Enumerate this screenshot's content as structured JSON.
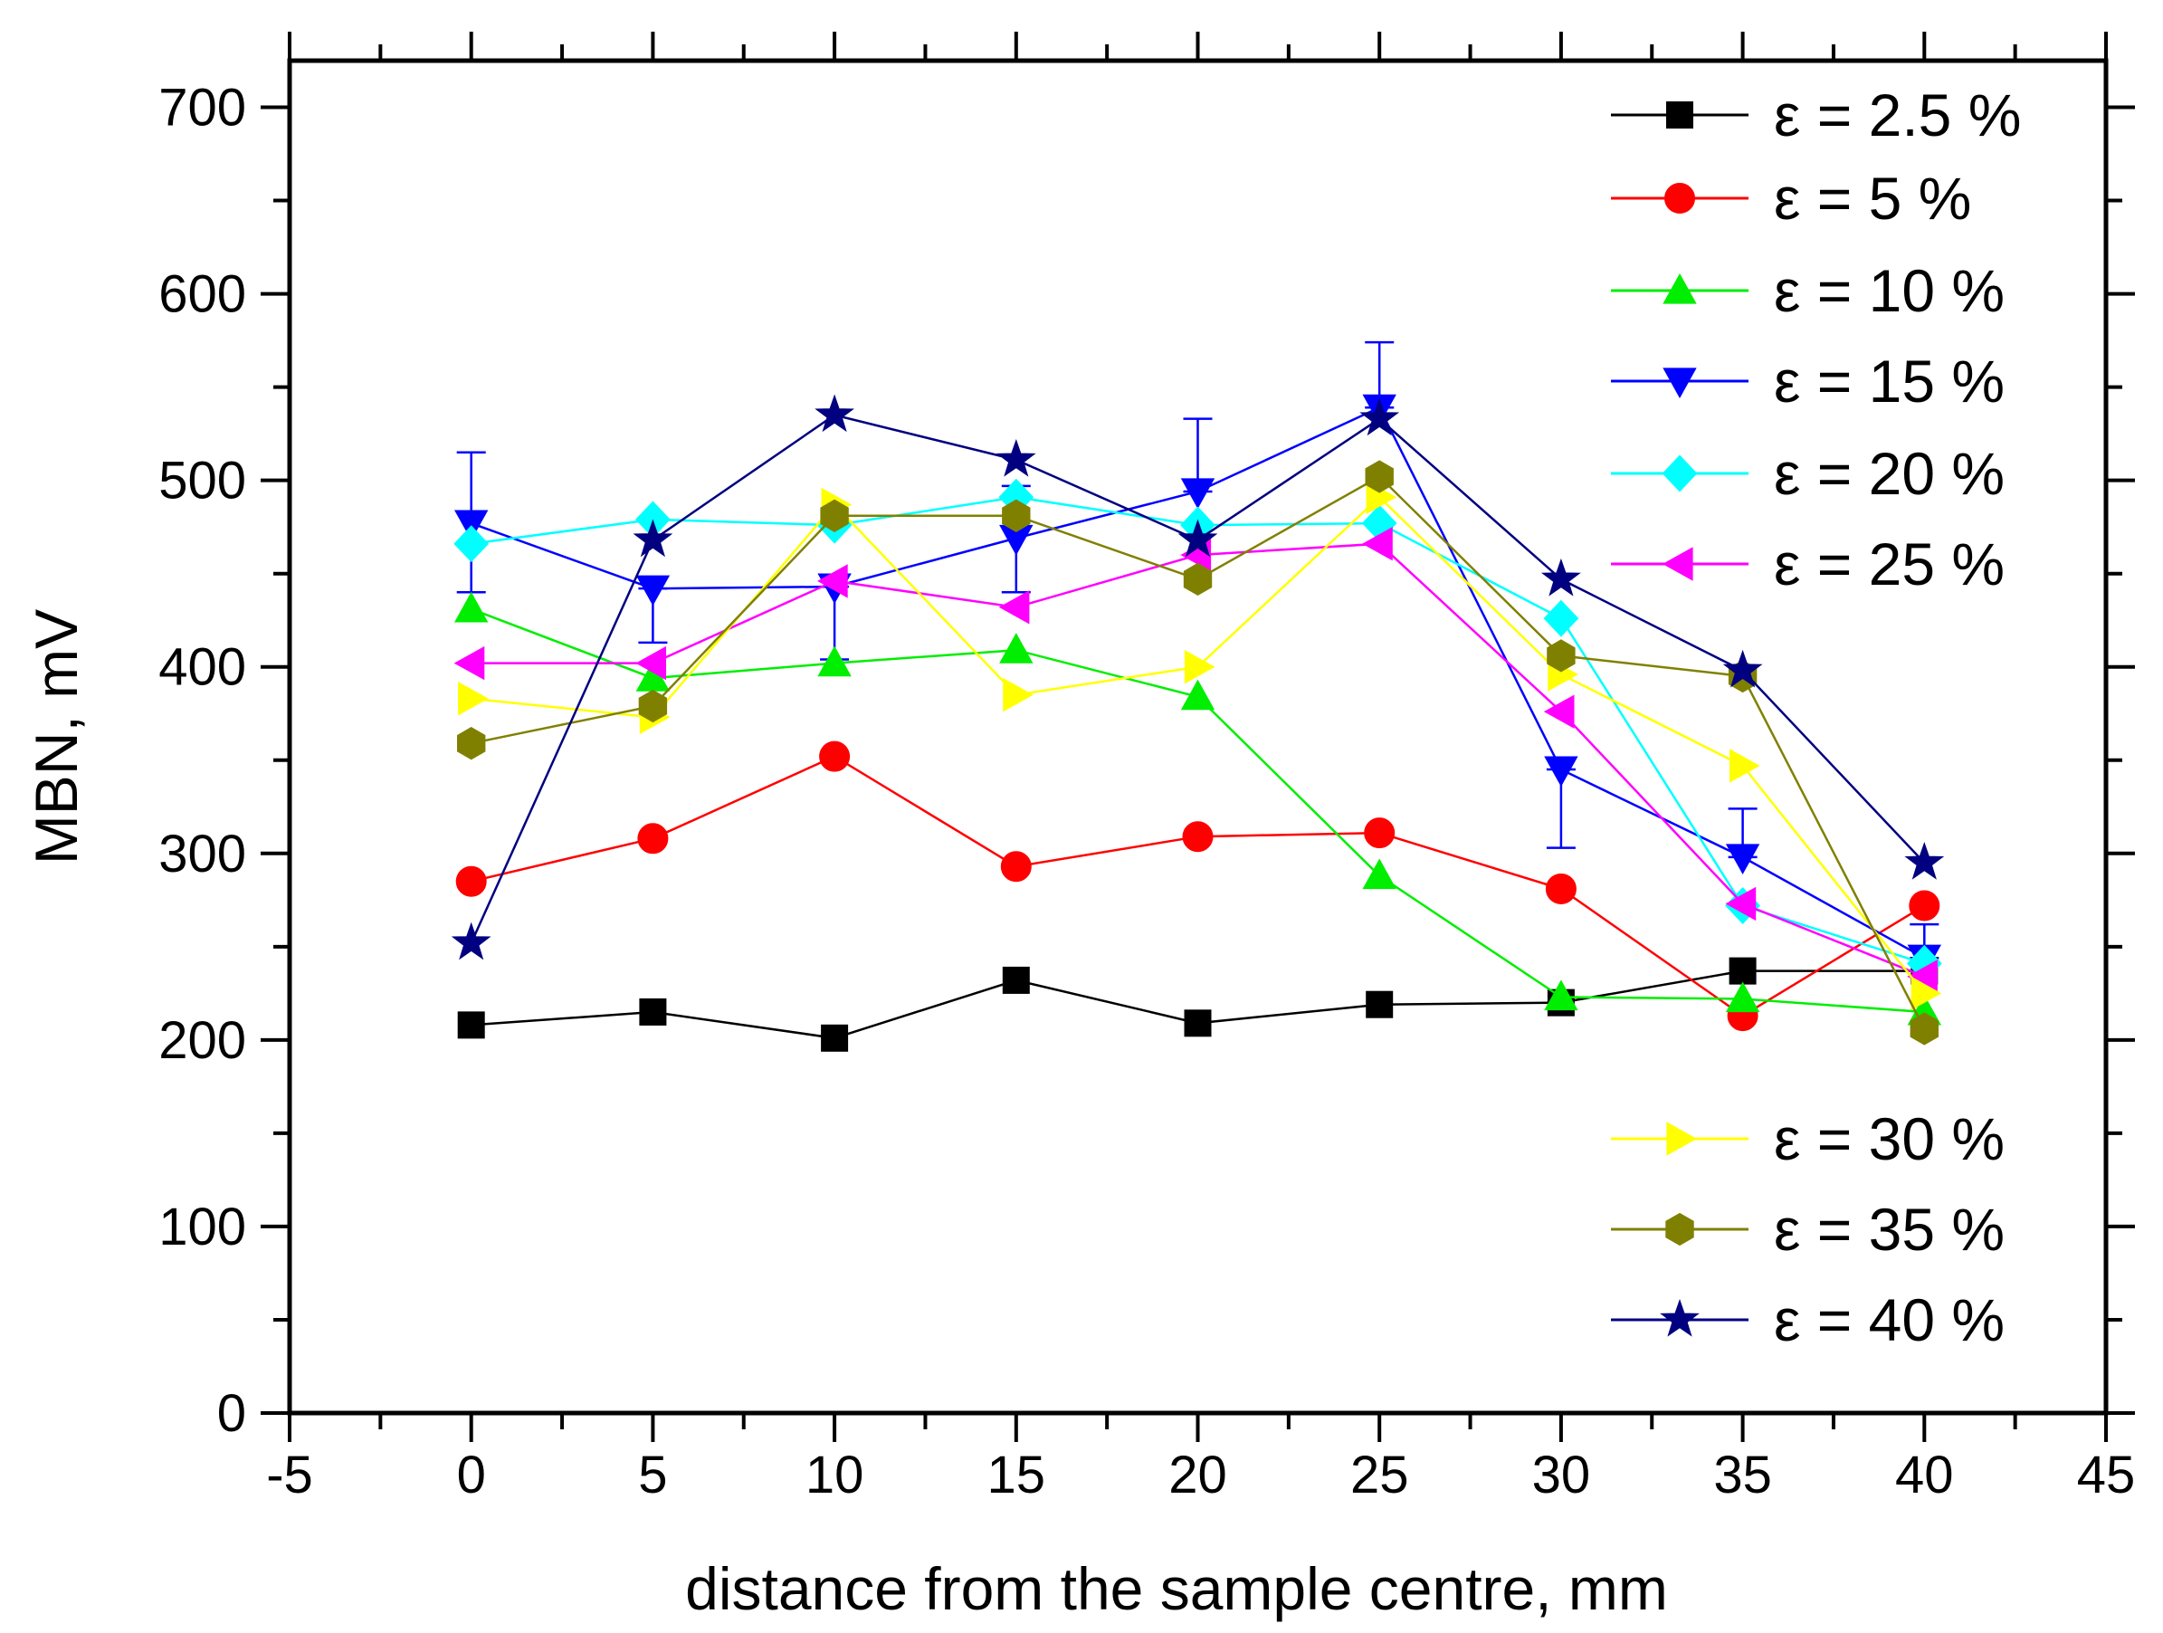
{
  "chart_data": {
    "type": "line",
    "title": "",
    "xlabel": "distance from the sample centre, mm",
    "ylabel": "MBN, mV",
    "xlim": [
      -5,
      45
    ],
    "ylim": [
      0,
      725
    ],
    "x_ticks": [
      -5,
      0,
      5,
      10,
      15,
      20,
      25,
      30,
      35,
      40,
      45
    ],
    "y_ticks": [
      0,
      100,
      200,
      300,
      400,
      500,
      600,
      700
    ],
    "x": [
      0,
      5,
      10,
      15,
      20,
      25,
      30,
      35,
      40
    ],
    "legend_position": "right",
    "series": [
      {
        "name": "ε = 2.5 %",
        "color": "#000000",
        "marker": "square",
        "values": [
          208,
          215,
          201,
          232,
          209,
          219,
          220,
          237,
          237
        ]
      },
      {
        "name": "ε = 5 %",
        "color": "#ff0000",
        "marker": "circle",
        "values": [
          285,
          308,
          352,
          293,
          309,
          311,
          281,
          213,
          272
        ]
      },
      {
        "name": "ε = 10 %",
        "color": "#00ee00",
        "marker": "triangle-up",
        "values": [
          431,
          394,
          402,
          409,
          384,
          288,
          223,
          222,
          215
        ]
      },
      {
        "name": "ε = 15 %",
        "color": "#0000ff",
        "marker": "triangle-down",
        "values": [
          477,
          442,
          443,
          469,
          494,
          539,
          345,
          298,
          244
        ]
      },
      {
        "name": "ε = 20 %",
        "color": "#00ffff",
        "marker": "diamond",
        "values": [
          466,
          479,
          476,
          491,
          476,
          477,
          426,
          272,
          241
        ]
      },
      {
        "name": "ε = 25 %",
        "color": "#ff00ff",
        "marker": "triangle-left",
        "values": [
          402,
          402,
          446,
          432,
          460,
          466,
          376,
          273,
          234
        ]
      },
      {
        "name": "ε = 30 %",
        "color": "#ffff00",
        "marker": "triangle-right",
        "values": [
          383,
          373,
          487,
          385,
          400,
          491,
          396,
          347,
          225
        ]
      },
      {
        "name": "ε = 35 %",
        "color": "#808000",
        "marker": "hexagon",
        "values": [
          359,
          379,
          481,
          481,
          447,
          502,
          406,
          395,
          206
        ]
      },
      {
        "name": "ε = 40 %",
        "color": "#000080",
        "marker": "star",
        "values": [
          252,
          468,
          535,
          511,
          468,
          533,
          447,
          398,
          295
        ]
      }
    ],
    "error_bars": [
      {
        "series": "ε = 15 %",
        "x": 0,
        "high": 515,
        "low": 440
      },
      {
        "series": "ε = 15 %",
        "x": 5,
        "high": 442,
        "low": 413
      },
      {
        "series": "ε = 15 %",
        "x": 10,
        "high": 443,
        "low": 404
      },
      {
        "series": "ε = 15 %",
        "x": 15,
        "high": 497,
        "low": 440
      },
      {
        "series": "ε = 15 %",
        "x": 20,
        "high": 533,
        "low": 494
      },
      {
        "series": "ε = 15 %",
        "x": 25,
        "high": 574,
        "low": 539
      },
      {
        "series": "ε = 15 %",
        "x": 30,
        "high": 345,
        "low": 303
      },
      {
        "series": "ε = 15 %",
        "x": 35,
        "high": 324,
        "low": 298
      },
      {
        "series": "ε = 15 %",
        "x": 40,
        "high": 262,
        "low": 244
      }
    ]
  }
}
